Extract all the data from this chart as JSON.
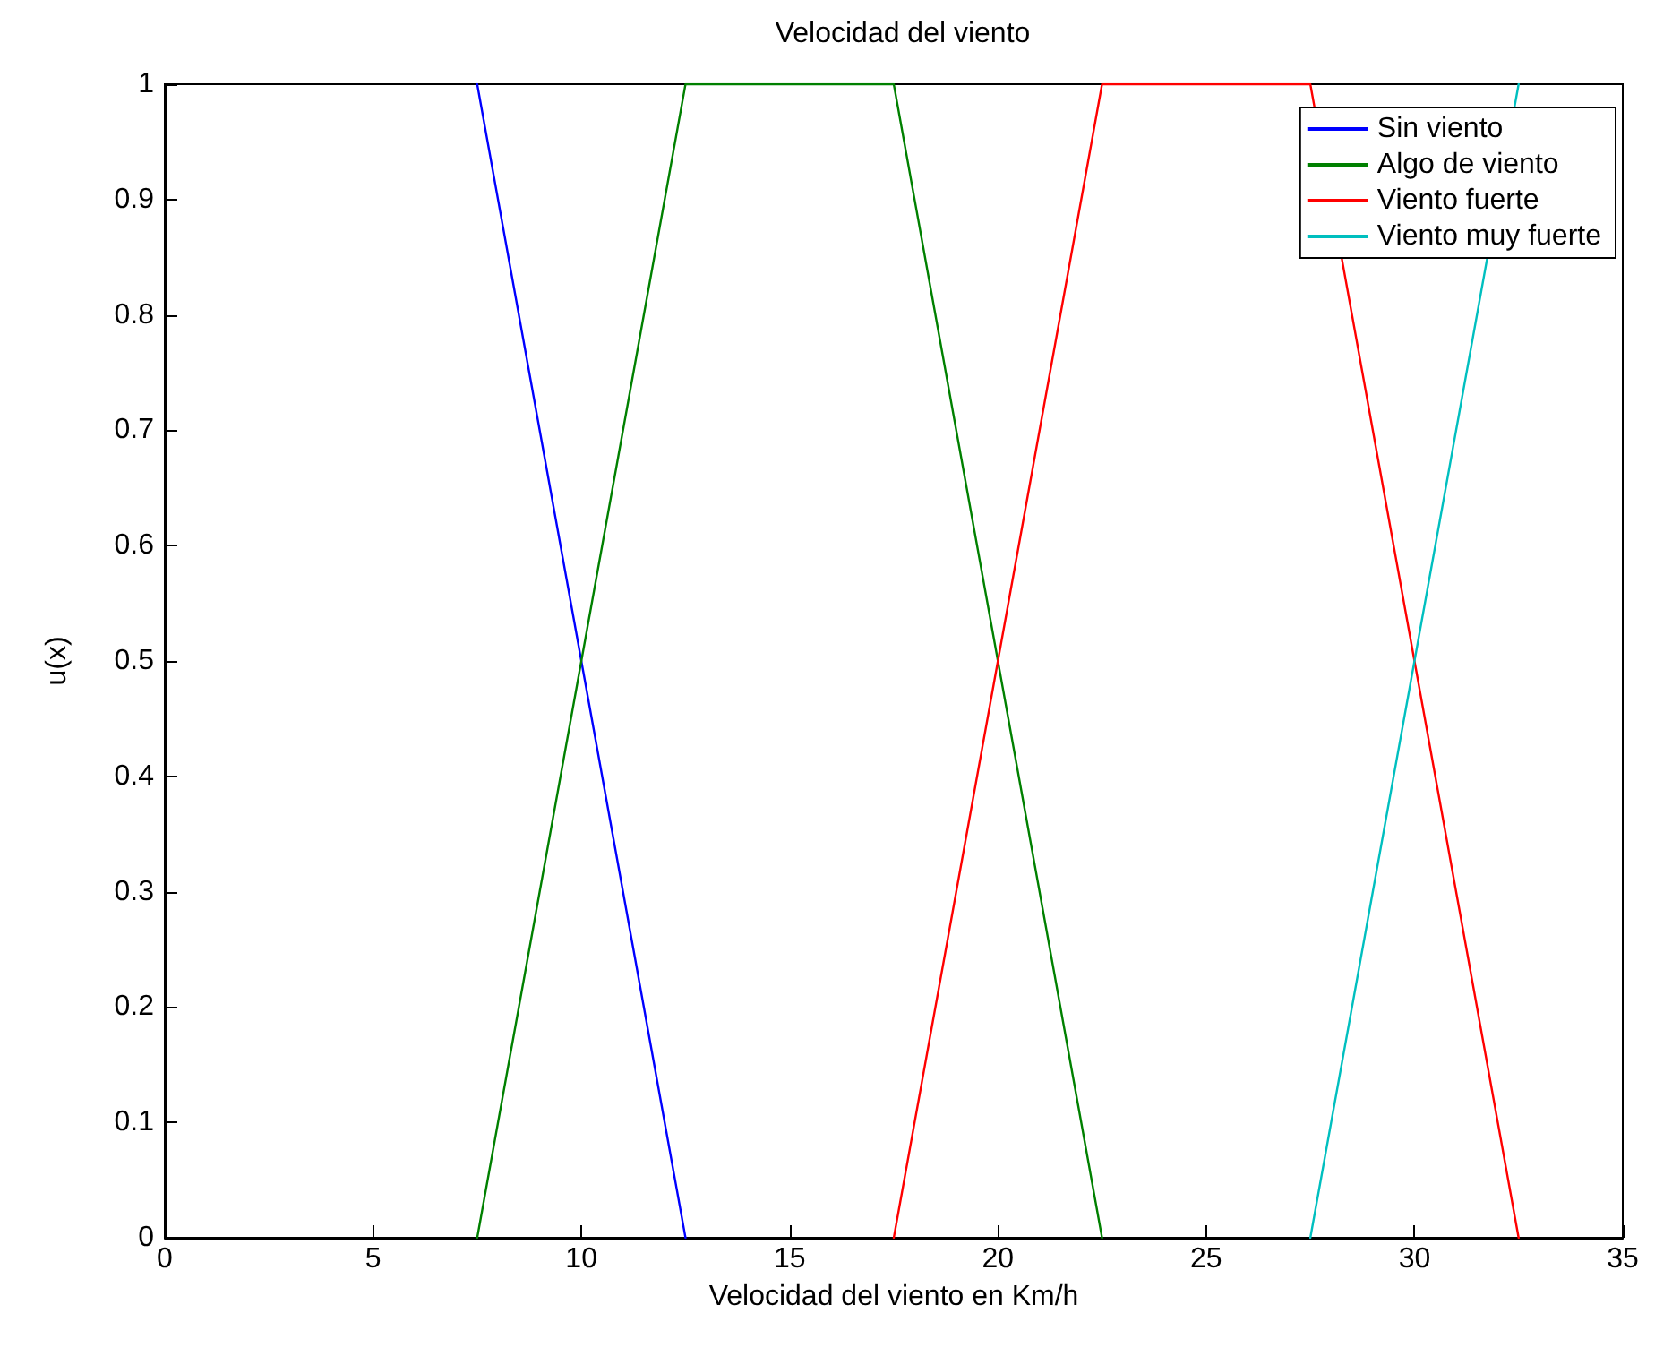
{
  "chart_data": {
    "type": "line",
    "title": "Velocidad del viento",
    "xlabel": "Velocidad del viento en Km/h",
    "ylabel": "u(x)",
    "xlim": [
      0,
      35
    ],
    "xticks": [
      0,
      5,
      10,
      15,
      20,
      25,
      30,
      35
    ],
    "ylim": [
      0,
      1
    ],
    "yticks": [
      0,
      0.1,
      0.2,
      0.3,
      0.4,
      0.5,
      0.6,
      0.7,
      0.8,
      0.9,
      1
    ],
    "grid": false,
    "legend": "top right",
    "marker": "none",
    "line_style": "solid",
    "series": [
      {
        "name": "Sin viento",
        "color": "#0000ff",
        "x": [
          7.5,
          12.5
        ],
        "values": [
          1,
          0
        ]
      },
      {
        "name": "Algo de viento",
        "color": "#008000",
        "x": [
          7.5,
          12.5,
          17.5,
          22.5
        ],
        "values": [
          0,
          1,
          1,
          0
        ]
      },
      {
        "name": "Viento fuerte",
        "color": "#ff0000",
        "x": [
          17.5,
          22.5,
          27.5,
          32.5
        ],
        "values": [
          0,
          1,
          1,
          0
        ]
      },
      {
        "name": "Viento muy fuerte",
        "color": "#00bfbf",
        "x": [
          27.5,
          32.5
        ],
        "values": [
          0,
          1
        ]
      }
    ]
  }
}
